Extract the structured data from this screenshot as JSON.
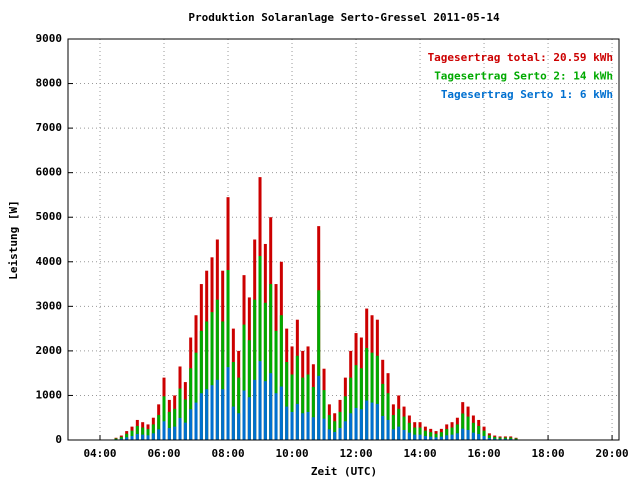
{
  "chart_data": {
    "type": "bar",
    "title": "Produktion Solaranlage Serto-Gressel 2011-05-14",
    "xlabel": "Zeit (UTC)",
    "ylabel": "Leistung [W]",
    "x": [
      270,
      280,
      290,
      300,
      310,
      320,
      330,
      340,
      350,
      360,
      370,
      380,
      390,
      400,
      410,
      420,
      430,
      440,
      450,
      460,
      470,
      480,
      490,
      500,
      510,
      520,
      530,
      540,
      550,
      560,
      570,
      580,
      590,
      600,
      610,
      620,
      630,
      640,
      650,
      660,
      670,
      680,
      690,
      700,
      710,
      720,
      730,
      740,
      750,
      760,
      770,
      780,
      790,
      800,
      810,
      820,
      830,
      840,
      850,
      860,
      870,
      880,
      890,
      900,
      910,
      920,
      930,
      940,
      950,
      960,
      970,
      980,
      990,
      1000,
      1010,
      1020
    ],
    "series": [
      {
        "name": "Tagesertrag total: 20.59 kWh",
        "color": "#cc0000",
        "values": [
          50,
          100,
          200,
          300,
          450,
          400,
          350,
          500,
          800,
          1400,
          900,
          1000,
          1650,
          1300,
          2300,
          2800,
          3500,
          3800,
          4100,
          4500,
          3800,
          5450,
          2500,
          2000,
          3700,
          3200,
          4500,
          5900,
          4400,
          5000,
          3500,
          4000,
          2500,
          2100,
          2700,
          2000,
          2100,
          1700,
          4800,
          1600,
          800,
          600,
          900,
          1400,
          2000,
          2400,
          2300,
          2950,
          2800,
          2700,
          1800,
          1500,
          800,
          1000,
          750,
          550,
          400,
          400,
          300,
          250,
          200,
          250,
          350,
          400,
          500,
          850,
          750,
          550,
          450,
          300,
          150,
          100,
          80,
          80,
          80,
          50
        ]
      },
      {
        "name": "Tagesertrag Serto 2: 14 kWh",
        "color": "#00aa00",
        "values": [
          35,
          70,
          140,
          210,
          315,
          280,
          245,
          350,
          560,
          980,
          630,
          700,
          1155,
          910,
          1610,
          1960,
          2450,
          2660,
          2870,
          3150,
          2660,
          3815,
          1750,
          1400,
          2590,
          2240,
          3150,
          4130,
          3080,
          3500,
          2450,
          2800,
          1750,
          1470,
          1890,
          1400,
          1470,
          1190,
          3360,
          1120,
          560,
          420,
          630,
          980,
          1400,
          1680,
          1610,
          2065,
          1960,
          1890,
          1260,
          1050,
          560,
          700,
          525,
          385,
          280,
          280,
          210,
          175,
          140,
          175,
          245,
          280,
          350,
          595,
          525,
          385,
          315,
          210,
          105,
          70,
          56,
          56,
          56,
          35
        ]
      },
      {
        "name": "Tagesertrag Serto 1: 6 kWh",
        "color": "#0070d0",
        "values": [
          15,
          30,
          60,
          90,
          135,
          120,
          105,
          150,
          240,
          420,
          270,
          300,
          495,
          390,
          690,
          840,
          1050,
          1140,
          1230,
          1350,
          1140,
          1635,
          750,
          600,
          1110,
          960,
          1350,
          1770,
          1320,
          1500,
          1050,
          1200,
          750,
          630,
          810,
          600,
          630,
          510,
          1440,
          480,
          240,
          180,
          270,
          420,
          600,
          720,
          690,
          885,
          840,
          810,
          540,
          450,
          240,
          300,
          225,
          165,
          120,
          120,
          90,
          75,
          60,
          75,
          105,
          120,
          150,
          255,
          225,
          165,
          135,
          90,
          45,
          30,
          24,
          24,
          24,
          15
        ]
      }
    ],
    "xlim": [
      180,
      1213
    ],
    "xticks": [
      {
        "value": 240,
        "label": "04:00"
      },
      {
        "value": 360,
        "label": "06:00"
      },
      {
        "value": 480,
        "label": "08:00"
      },
      {
        "value": 600,
        "label": "10:00"
      },
      {
        "value": 720,
        "label": "12:00"
      },
      {
        "value": 840,
        "label": "14:00"
      },
      {
        "value": 960,
        "label": "16:00"
      },
      {
        "value": 1080,
        "label": "18:00"
      },
      {
        "value": 1200,
        "label": "20:00"
      }
    ],
    "ylim": [
      0,
      9000
    ],
    "yticks": [
      0,
      1000,
      2000,
      3000,
      4000,
      5000,
      6000,
      7000,
      8000,
      9000
    ],
    "grid": true,
    "legend": "upper right"
  }
}
